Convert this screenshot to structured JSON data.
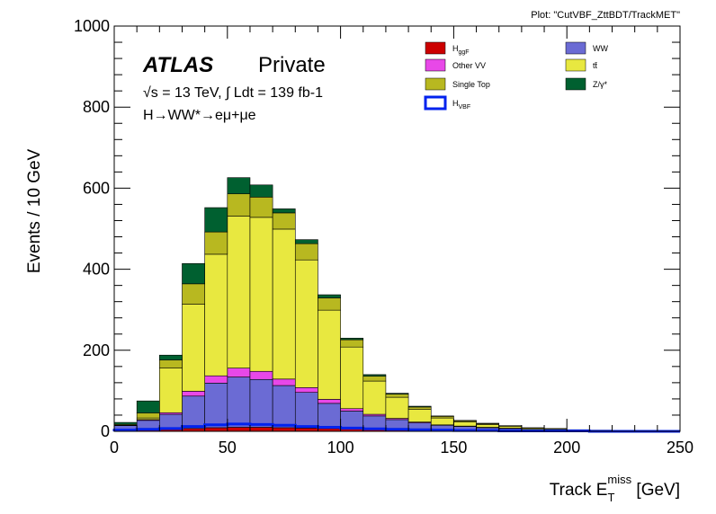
{
  "plot_tag": "Plot: \"CutVBF_ZttBDT/TrackMET\"",
  "atlas": {
    "label": "ATLAS",
    "status": "Private",
    "energy_line": "√s = 13 TeV, ∫ Ldt = 139 fb-1",
    "process_line": "H→WW*→eμ+μe"
  },
  "chart_data": {
    "type": "bar",
    "stacked": true,
    "xlabel": "Track E_T^miss [GeV]",
    "ylabel": "Events / 10 GeV",
    "xlim": [
      0,
      250
    ],
    "ylim": [
      0,
      1000
    ],
    "x_ticks": [
      0,
      50,
      100,
      150,
      200,
      250
    ],
    "y_ticks": [
      0,
      200,
      400,
      600,
      800,
      1000
    ],
    "bin_edges": [
      0,
      10,
      20,
      30,
      40,
      50,
      60,
      70,
      80,
      90,
      100,
      110,
      120,
      130,
      140,
      150,
      160,
      170,
      180,
      190,
      200,
      210,
      220,
      230,
      240,
      250
    ],
    "grid": false,
    "legend_position": "top-right",
    "series": [
      {
        "name": "H_ggF",
        "color": "#cc0000",
        "values": [
          2,
          3,
          4,
          7,
          9,
          10,
          10,
          9,
          8,
          7,
          6,
          5,
          4,
          3,
          2,
          2,
          1,
          1,
          1,
          1,
          0,
          0,
          0,
          0,
          0
        ]
      },
      {
        "name": "WW",
        "color": "#6b6bd4",
        "values": [
          12,
          24,
          38,
          80,
          110,
          124,
          118,
          104,
          88,
          62,
          44,
          33,
          25,
          18,
          13,
          10,
          8,
          6,
          4,
          3,
          2,
          2,
          1,
          1,
          1
        ]
      },
      {
        "name": "Other VV",
        "color": "#e848e8",
        "values": [
          1,
          2,
          4,
          12,
          18,
          22,
          20,
          16,
          12,
          10,
          6,
          4,
          3,
          2,
          1,
          1,
          1,
          1,
          0,
          0,
          0,
          0,
          0,
          0,
          0
        ]
      },
      {
        "name": "tt̄",
        "color": "#e8e840",
        "values": [
          0,
          4,
          110,
          215,
          300,
          375,
          380,
          370,
          315,
          220,
          152,
          82,
          52,
          31,
          17,
          10,
          7,
          4,
          3,
          2,
          1,
          1,
          1,
          0,
          0
        ]
      },
      {
        "name": "Single Top",
        "color": "#b8b820",
        "values": [
          2,
          12,
          20,
          50,
          55,
          55,
          50,
          40,
          40,
          30,
          18,
          12,
          8,
          6,
          4,
          3,
          2,
          2,
          1,
          1,
          1,
          0,
          0,
          0,
          0
        ]
      },
      {
        "name": "Z/γ*",
        "color": "#006030",
        "values": [
          5,
          30,
          12,
          50,
          60,
          40,
          30,
          10,
          10,
          8,
          4,
          4,
          2,
          2,
          1,
          1,
          1,
          0,
          0,
          0,
          0,
          0,
          0,
          0,
          0
        ]
      }
    ],
    "overlay": {
      "name": "H_VBF",
      "color": "#0022ee",
      "values": [
        3,
        5,
        7,
        12,
        16,
        18,
        17,
        15,
        12,
        10,
        8,
        6,
        5,
        4,
        3,
        2,
        2,
        1,
        1,
        1,
        1,
        0,
        0,
        0,
        0
      ]
    },
    "legend": [
      {
        "name": "H_ggF",
        "base": "H",
        "sub": "ggF",
        "style": "fill",
        "color": "#cc0000",
        "col": 0,
        "row": 0
      },
      {
        "name": "WW",
        "base": "WW",
        "sub": "",
        "style": "fill",
        "color": "#6b6bd4",
        "col": 1,
        "row": 0
      },
      {
        "name": "Other VV",
        "base": "Other VV",
        "sub": "",
        "style": "fill",
        "color": "#e848e8",
        "col": 0,
        "row": 1
      },
      {
        "name": "tt̄",
        "base": "tt̄",
        "sub": "",
        "style": "fill",
        "color": "#e8e840",
        "col": 1,
        "row": 1
      },
      {
        "name": "Single Top",
        "base": "Single Top",
        "sub": "",
        "style": "fill",
        "color": "#b8b820",
        "col": 0,
        "row": 2
      },
      {
        "name": "Z/γ*",
        "base": "Z/γ*",
        "sub": "",
        "style": "fill",
        "color": "#006030",
        "col": 1,
        "row": 2
      },
      {
        "name": "H_VBF",
        "base": "H",
        "sub": "VBF",
        "style": "line",
        "color": "#0022ee",
        "col": 0,
        "row": 3
      }
    ]
  }
}
